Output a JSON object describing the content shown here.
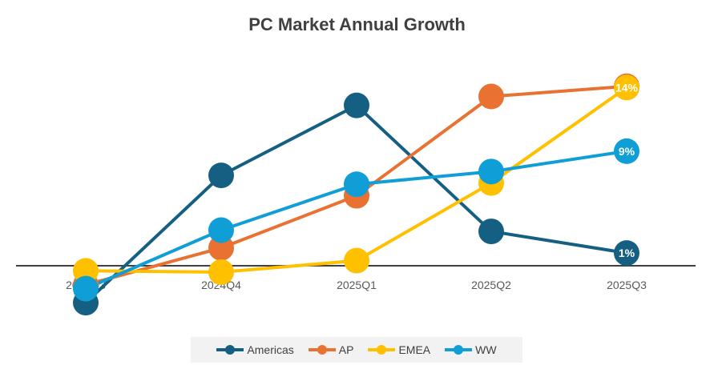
{
  "chart_data": {
    "type": "line",
    "title": "PC Market Annual Growth",
    "categories": [
      "2024Q3",
      "2024Q4",
      "2025Q1",
      "2025Q2",
      "2025Q3"
    ],
    "unit": "%",
    "ylim": [
      -4,
      15
    ],
    "grid": false,
    "legend": "bottom",
    "series": [
      {
        "name": "Americas",
        "color": "#156082",
        "values": [
          -2.9,
          7.1,
          12.6,
          2.7,
          1
        ],
        "label_last": "1%"
      },
      {
        "name": "AP",
        "color": "#E97132",
        "values": [
          -1.5,
          1.4,
          5.5,
          13.3,
          14.1
        ],
        "label_last": ""
      },
      {
        "name": "EMEA",
        "color": "#FFC000",
        "values": [
          -0.4,
          -0.5,
          0.4,
          6.5,
          14
        ],
        "label_last": "14%"
      },
      {
        "name": "WW",
        "color": "#0F9ED5",
        "values": [
          -1.8,
          2.8,
          6.4,
          7.4,
          9
        ],
        "label_last": "9%"
      }
    ]
  }
}
